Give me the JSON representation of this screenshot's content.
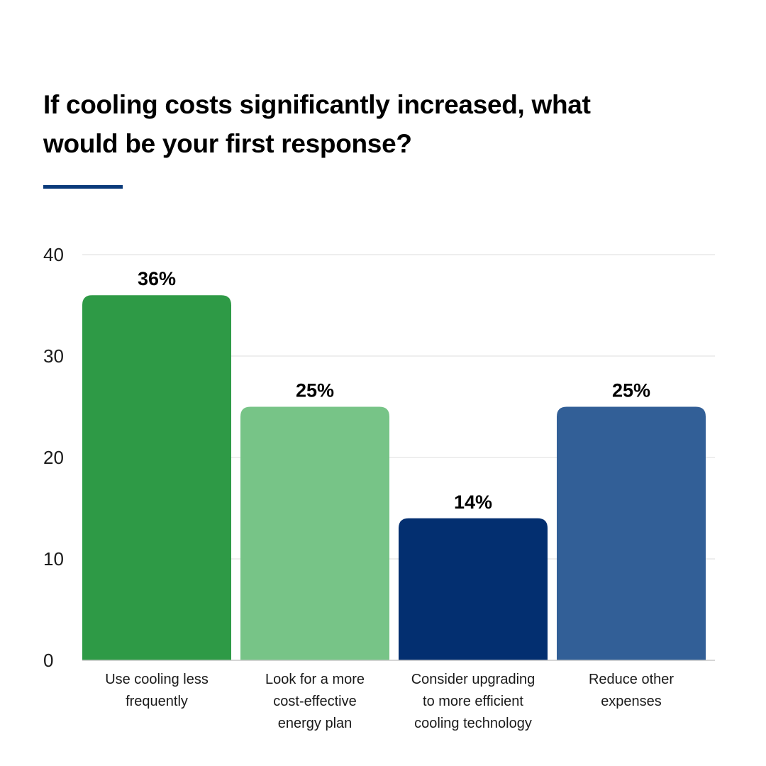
{
  "title_lines": [
    "If cooling costs significantly increased, what",
    "would be your first response?"
  ],
  "colors": {
    "accent_rule": "#0a3a7a",
    "gridline": "#e3e3e3",
    "axis_line": "#c8c8c8"
  },
  "chart_data": {
    "type": "bar",
    "title": "If cooling costs significantly increased, what would be your first response?",
    "categories": [
      "Use cooling less frequently",
      "Look for a more cost-effective energy plan",
      "Consider upgrading to more efficient cooling technology",
      "Reduce other expenses"
    ],
    "category_label_lines": [
      [
        "Use cooling less",
        "frequently"
      ],
      [
        "Look for a more",
        "cost-effective",
        "energy plan"
      ],
      [
        "Consider upgrading",
        "to more efficient",
        "cooling technology"
      ],
      [
        "Reduce other",
        "expenses"
      ]
    ],
    "values": [
      36,
      25,
      14,
      25
    ],
    "data_labels": [
      "36%",
      "25%",
      "14%",
      "25%"
    ],
    "bar_colors": [
      "#2e9a46",
      "#77c487",
      "#032f70",
      "#325f97"
    ],
    "ylim": [
      0,
      40
    ],
    "yticks": [
      0,
      10,
      20,
      30,
      40
    ],
    "xlabel": "",
    "ylabel": "",
    "grid": true,
    "legend": "none"
  }
}
